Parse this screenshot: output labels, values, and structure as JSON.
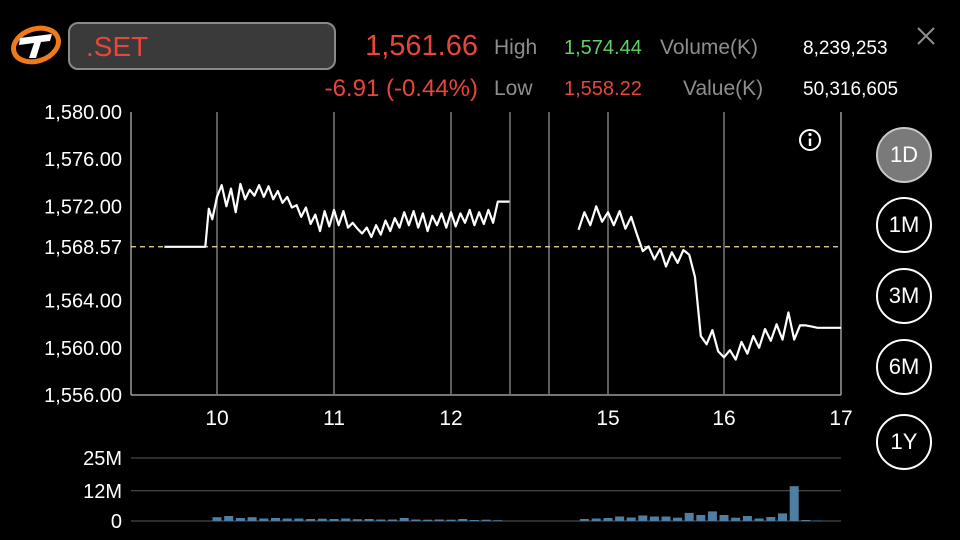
{
  "header": {
    "symbol": ".SET",
    "last_price": "1,561.66",
    "change": "-6.91 (-0.44%)",
    "high_label": "High",
    "high_value": "1,574.44",
    "low_label": "Low",
    "low_value": "1,558.22",
    "volume_label": "Volume(K)",
    "volume_value": "8,239,253",
    "value_label": "Value(K)",
    "value_value": "50,316,605"
  },
  "periods": [
    {
      "label": "1D",
      "active": true
    },
    {
      "label": "1M",
      "active": false
    },
    {
      "label": "3M",
      "active": false
    },
    {
      "label": "6M",
      "active": false
    },
    {
      "label": "1Y",
      "active": false
    }
  ],
  "colors": {
    "up": "#5fd35f",
    "down": "#e8453c",
    "prev_close": "#f0e68c",
    "volume_bar": "#4f7ea3"
  },
  "icons": {
    "logo": "settrade-logo",
    "close": "close-icon",
    "info": "info-icon"
  },
  "chart_data": [
    {
      "type": "line",
      "title": "",
      "ylim": [
        1556,
        1580
      ],
      "yticks": [
        "1,580.00",
        "1,576.00",
        "1,572.00",
        "1,568.57",
        "1,564.00",
        "1,560.00",
        "1,556.00"
      ],
      "ytick_values": [
        1580,
        1576,
        1572,
        1568.57,
        1564,
        1560,
        1556
      ],
      "xticks": [
        "10",
        "11",
        "12",
        "15",
        "16",
        "17"
      ],
      "prev_close": 1568.57,
      "series": [
        {
          "x": [
            9.55,
            9.63,
            9.7,
            9.78,
            9.85,
            9.9,
            9.93,
            9.96,
            10.0,
            10.04,
            10.08,
            10.12,
            10.16,
            10.2,
            10.24,
            10.28,
            10.32,
            10.36,
            10.4,
            10.44,
            10.48,
            10.52,
            10.56,
            10.6,
            10.64,
            10.68,
            10.72,
            10.76,
            10.8,
            10.84,
            10.88,
            10.92,
            10.96,
            11.0,
            11.04,
            11.08,
            11.12,
            11.16,
            11.2,
            11.24,
            11.28,
            11.32,
            11.36,
            11.4,
            11.44,
            11.48,
            11.52,
            11.56,
            11.6,
            11.64,
            11.68,
            11.72,
            11.76,
            11.8,
            11.84,
            11.88,
            11.92,
            11.96,
            12.0,
            12.04,
            12.08,
            12.12,
            12.16,
            12.2,
            12.24,
            12.28,
            12.32,
            12.36,
            12.4,
            12.45,
            12.5
          ],
          "y": [
            1568.57,
            1568.57,
            1568.57,
            1568.57,
            1568.57,
            1568.57,
            1571.8,
            1570.9,
            1572.8,
            1573.8,
            1572.0,
            1573.5,
            1571.5,
            1573.9,
            1572.6,
            1573.4,
            1572.9,
            1573.8,
            1572.8,
            1573.7,
            1572.6,
            1573.3,
            1572.3,
            1572.8,
            1571.9,
            1572.1,
            1571.1,
            1571.9,
            1570.5,
            1571.3,
            1569.9,
            1571.6,
            1570.3,
            1571.7,
            1570.4,
            1571.6,
            1570.2,
            1570.6,
            1570.1,
            1569.7,
            1570.2,
            1569.4,
            1570.4,
            1569.6,
            1570.8,
            1569.9,
            1571.0,
            1570.2,
            1571.5,
            1570.4,
            1571.6,
            1570.2,
            1571.4,
            1569.9,
            1571.2,
            1570.4,
            1571.4,
            1570.2,
            1571.5,
            1570.3,
            1571.4,
            1570.6,
            1571.7,
            1570.4,
            1571.5,
            1570.5,
            1571.7,
            1570.6,
            1572.4,
            1572.4,
            1572.4
          ]
        },
        {
          "x": [
            14.75,
            14.8,
            14.85,
            14.9,
            14.95,
            15.0,
            15.05,
            15.1,
            15.15,
            15.2,
            15.25,
            15.3,
            15.35,
            15.4,
            15.45,
            15.5,
            15.55,
            15.6,
            15.65,
            15.7,
            15.75,
            15.8,
            15.85,
            15.9,
            15.95,
            16.0,
            16.05,
            16.1,
            16.15,
            16.2,
            16.25,
            16.3,
            16.35,
            16.4,
            16.45,
            16.5,
            16.55,
            16.6,
            16.65,
            16.7,
            16.75,
            16.8,
            16.85,
            16.9,
            16.95,
            17.0
          ],
          "y": [
            1570.0,
            1571.5,
            1570.4,
            1572.0,
            1570.7,
            1571.5,
            1570.4,
            1571.6,
            1570.1,
            1571.1,
            1569.6,
            1568.2,
            1568.6,
            1567.5,
            1568.4,
            1566.9,
            1568.1,
            1567.2,
            1568.3,
            1567.9,
            1566.0,
            1561.0,
            1560.3,
            1561.5,
            1559.7,
            1559.2,
            1559.8,
            1559.0,
            1560.5,
            1559.5,
            1561.0,
            1560.0,
            1561.6,
            1560.6,
            1562.0,
            1560.7,
            1563.0,
            1560.7,
            1561.9,
            1561.9,
            1561.8,
            1561.7,
            1561.7,
            1561.7,
            1561.7,
            1561.7
          ]
        }
      ]
    },
    {
      "type": "bar",
      "title": "",
      "ylim": [
        0,
        25000000
      ],
      "yticks": [
        "25M",
        "12M",
        "0"
      ],
      "ytick_values": [
        25000000,
        12000000,
        0
      ],
      "x": [
        10.0,
        10.1,
        10.2,
        10.3,
        10.4,
        10.5,
        10.6,
        10.7,
        10.8,
        10.9,
        11.0,
        11.1,
        11.2,
        11.3,
        11.4,
        11.5,
        11.6,
        11.7,
        11.8,
        11.9,
        12.0,
        12.1,
        12.2,
        12.3,
        12.4,
        14.8,
        14.9,
        15.0,
        15.1,
        15.2,
        15.3,
        15.4,
        15.5,
        15.6,
        15.7,
        15.8,
        15.9,
        16.0,
        16.1,
        16.2,
        16.3,
        16.4,
        16.5,
        16.6,
        16.7,
        16.8
      ],
      "values": [
        1500000.0,
        2000000.0,
        1200000.0,
        1500000.0,
        1000000.0,
        1200000.0,
        1000000.0,
        1000000.0,
        800000.0,
        900000.0,
        800000.0,
        1000000.0,
        700000.0,
        800000.0,
        600000.0,
        600000.0,
        1200000.0,
        600000.0,
        500000.0,
        600000.0,
        500000.0,
        800000.0,
        400000.0,
        500000.0,
        300000.0,
        800000.0,
        1000000.0,
        1200000.0,
        1800000.0,
        1400000.0,
        2200000.0,
        1800000.0,
        1800000.0,
        1300000.0,
        3200000.0,
        2400000.0,
        3800000.0,
        2400000.0,
        1300000.0,
        2000000.0,
        1000000.0,
        1600000.0,
        3000000.0,
        13800000.0,
        400000.0,
        200000.0
      ]
    }
  ]
}
